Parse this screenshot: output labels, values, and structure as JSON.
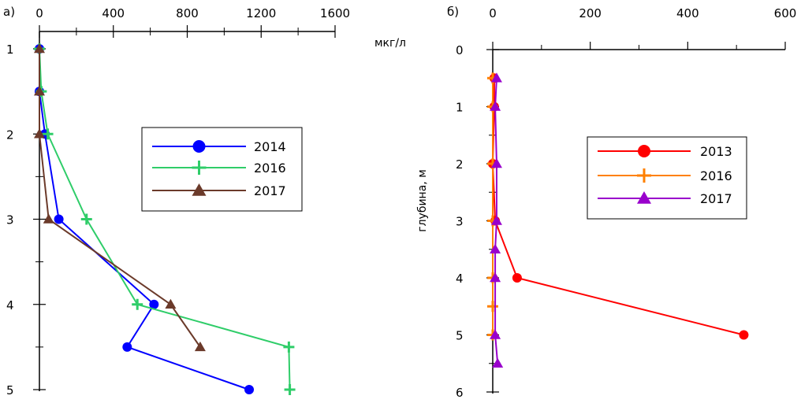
{
  "chart_data": [
    {
      "panel_label": "а)",
      "type": "line",
      "orientation": "depth-profile",
      "xlabel": "мкг/л",
      "ylabel": "",
      "xlim": [
        0,
        1600
      ],
      "ylim": [
        1,
        5
      ],
      "x_ticks": [
        "0",
        "400",
        "800",
        "1200",
        "1600"
      ],
      "y_ticks": [
        "1",
        "2",
        "3",
        "4",
        "5"
      ],
      "legend_position": "top-right",
      "series": [
        {
          "name": "2014",
          "color": "#0000ff",
          "marker": "circle",
          "points": [
            [
              0,
              1
            ],
            [
              0,
              1.5
            ],
            [
              30,
              2
            ],
            [
              105,
              3
            ],
            [
              620,
              4
            ],
            [
              475,
              4.5
            ],
            [
              1135,
              5
            ]
          ]
        },
        {
          "name": "2016",
          "color": "#2fcd69",
          "marker": "plus",
          "points": [
            [
              0,
              1
            ],
            [
              10,
              1.5
            ],
            [
              45,
              2
            ],
            [
              255,
              3
            ],
            [
              530,
              4
            ],
            [
              1350,
              4.5
            ],
            [
              1355,
              5
            ]
          ]
        },
        {
          "name": "2017",
          "color": "#6b3a2a",
          "marker": "triangle",
          "points": [
            [
              0,
              1
            ],
            [
              0,
              1.5
            ],
            [
              0,
              2
            ],
            [
              50,
              3
            ],
            [
              710,
              4
            ],
            [
              870,
              4.5
            ]
          ]
        }
      ]
    },
    {
      "panel_label": "б)",
      "type": "line",
      "orientation": "depth-profile",
      "xlabel": "",
      "ylabel": "глубина, м",
      "xlim": [
        0,
        600
      ],
      "ylim": [
        0,
        6
      ],
      "x_ticks": [
        "0",
        "200",
        "400",
        "600"
      ],
      "y_ticks": [
        "0",
        "1",
        "2",
        "3",
        "4",
        "5",
        "6"
      ],
      "legend_position": "middle-right",
      "series": [
        {
          "name": "2013",
          "color": "#ff0000",
          "marker": "circle",
          "points": [
            [
              3,
              0.5
            ],
            [
              3,
              1
            ],
            [
              0,
              2
            ],
            [
              5,
              3
            ],
            [
              50,
              4
            ],
            [
              515,
              5
            ]
          ]
        },
        {
          "name": "2016",
          "color": "#ff8000",
          "marker": "plus",
          "points": [
            [
              0,
              0.5
            ],
            [
              0,
              1
            ],
            [
              0,
              2
            ],
            [
              0,
              3
            ],
            [
              0,
              4
            ],
            [
              0,
              4.5
            ],
            [
              0,
              5
            ]
          ]
        },
        {
          "name": "2017",
          "color": "#9900cc",
          "marker": "triangle",
          "points": [
            [
              8,
              0.5
            ],
            [
              5,
              1
            ],
            [
              8,
              2
            ],
            [
              8,
              3
            ],
            [
              5,
              3.5
            ],
            [
              5,
              4
            ],
            [
              5,
              5
            ],
            [
              10,
              5.5
            ]
          ]
        }
      ]
    }
  ]
}
